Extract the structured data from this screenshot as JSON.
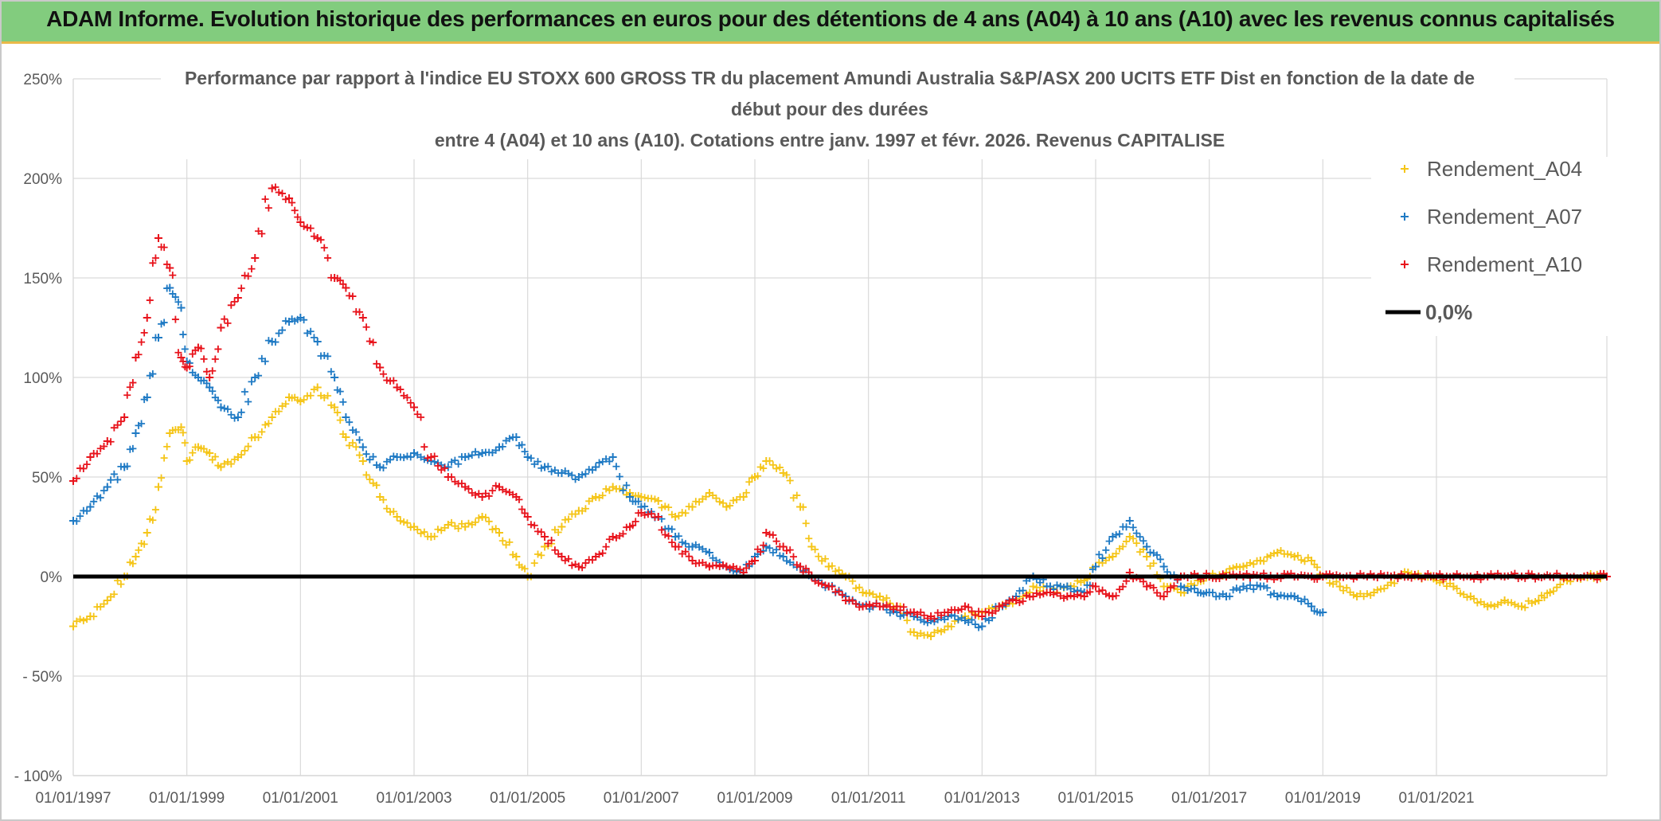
{
  "header": {
    "title": "ADAM Informe. Evolution historique des performances en euros pour des détentions de 4 ans (A04) à 10 ans (A10) avec les revenus connus capitalisés"
  },
  "colors": {
    "banner": "#82cc7e",
    "banner_border": "#e9b949",
    "A04": "#f5c518",
    "A07": "#1f7ac4",
    "A10": "#e8141c",
    "zero": "#000000",
    "grid": "#d9d9d9",
    "text": "#595959"
  },
  "chart_data": {
    "type": "scatter",
    "title_lines": [
      "Performance  par rapport à l'indice EU STOXX 600 GROSS TR  du placement Amundi Australia S&P/ASX 200 UCITS ETF Dist en fonction de la date de",
      "début pour des durées",
      "entre 4 (A04) et 10 ans (A10). Cotations entre janv. 1997 et févr. 2026. Revenus CAPITALISE"
    ],
    "xlabel": "",
    "ylabel": "",
    "x_range": [
      1997.0,
      2024.0
    ],
    "ylim": [
      -100,
      250
    ],
    "y_ticks": [
      250,
      200,
      150,
      100,
      50,
      0,
      -50,
      -100
    ],
    "y_tick_labels": [
      "250%",
      "200%",
      "150%",
      "100%",
      "50%",
      "0%",
      "- 50%",
      "- 100%"
    ],
    "x_ticks": [
      1997,
      1999,
      2001,
      2003,
      2005,
      2007,
      2009,
      2011,
      2013,
      2015,
      2017,
      2019,
      2021
    ],
    "x_tick_labels": [
      "01/01/1997",
      "01/01/1999",
      "01/01/2001",
      "01/01/2003",
      "01/01/2005",
      "01/01/2007",
      "01/01/2009",
      "01/01/2011",
      "01/01/2013",
      "01/01/2015",
      "01/01/2017",
      "01/01/2019",
      "01/01/2021"
    ],
    "grid": true,
    "legend_position": "top-right",
    "series": [
      {
        "name": "Rendement_A04",
        "marker": "+",
        "x": [
          1997.0,
          1997.3,
          1997.6,
          1997.9,
          1998.1,
          1998.3,
          1998.5,
          1998.7,
          1998.9,
          1999.0,
          1999.2,
          1999.4,
          1999.6,
          1999.9,
          2000.2,
          2000.5,
          2000.8,
          2001.0,
          2001.3,
          2001.6,
          2001.8,
          2002.1,
          2002.4,
          2002.7,
          2003.0,
          2003.3,
          2003.6,
          2003.9,
          2004.2,
          2004.5,
          2004.8,
          2005.0,
          2005.3,
          2005.6,
          2005.9,
          2006.2,
          2006.5,
          2006.8,
          2007.0,
          2007.3,
          2007.6,
          2007.9,
          2008.2,
          2008.5,
          2008.8,
          2009.0,
          2009.2,
          2009.5,
          2009.8,
          2010.0,
          2010.3,
          2010.6,
          2010.9,
          2011.2,
          2011.5,
          2011.8,
          2012.1,
          2012.4,
          2012.7,
          2013.0,
          2013.3,
          2013.6,
          2013.9,
          2014.2,
          2014.5,
          2014.8,
          2015.0,
          2015.3,
          2015.6,
          2015.9,
          2016.2,
          2016.5,
          2016.8,
          2017.0,
          2017.3,
          2017.6,
          2017.9,
          2018.2,
          2018.5,
          2018.8,
          2019.0,
          2019.3,
          2019.6,
          2019.9,
          2020.2,
          2020.5,
          2020.8,
          2021.0,
          2021.3,
          2021.6,
          2021.9,
          2022.2,
          2022.5,
          2022.8,
          2023.0,
          2023.3,
          2023.6,
          2024.0
        ],
        "y": [
          -25,
          -20,
          -12,
          0,
          10,
          22,
          45,
          72,
          75,
          58,
          65,
          62,
          55,
          60,
          70,
          80,
          90,
          88,
          95,
          85,
          70,
          58,
          40,
          30,
          25,
          20,
          26,
          25,
          30,
          22,
          10,
          0,
          15,
          25,
          33,
          40,
          45,
          42,
          40,
          38,
          30,
          35,
          42,
          35,
          40,
          50,
          58,
          52,
          35,
          15,
          5,
          0,
          -8,
          -10,
          -15,
          -28,
          -30,
          -25,
          -20,
          -18,
          -15,
          -12,
          -5,
          -8,
          -5,
          -2,
          5,
          10,
          20,
          10,
          -5,
          -8,
          -2,
          0,
          2,
          5,
          8,
          12,
          10,
          8,
          0,
          -5,
          -10,
          -8,
          -3,
          2,
          0,
          -2,
          -5,
          -10,
          -15,
          -12,
          -15,
          -12,
          -8,
          -2,
          0,
          0
        ]
      },
      {
        "name": "Rendement_A07",
        "marker": "+",
        "x": [
          1997.0,
          1997.3,
          1997.6,
          1997.9,
          1998.1,
          1998.3,
          1998.5,
          1998.7,
          1998.9,
          1999.0,
          1999.2,
          1999.4,
          1999.6,
          1999.9,
          2000.2,
          2000.5,
          2000.8,
          2001.0,
          2001.3,
          2001.6,
          2001.8,
          2002.1,
          2002.4,
          2002.7,
          2003.0,
          2003.3,
          2003.6,
          2003.9,
          2004.2,
          2004.5,
          2004.8,
          2005.0,
          2005.3,
          2005.6,
          2005.9,
          2006.2,
          2006.5,
          2006.8,
          2007.0,
          2007.3,
          2007.6,
          2007.9,
          2008.2,
          2008.5,
          2008.8,
          2009.0,
          2009.2,
          2009.5,
          2009.8,
          2010.0,
          2010.3,
          2010.6,
          2010.9,
          2011.2,
          2011.5,
          2011.8,
          2012.1,
          2012.4,
          2012.7,
          2013.0,
          2013.3,
          2013.6,
          2013.9,
          2014.2,
          2014.5,
          2014.8,
          2015.0,
          2015.3,
          2015.6,
          2015.9,
          2016.2,
          2016.5,
          2016.8,
          2017.0,
          2017.3,
          2017.6,
          2017.9,
          2018.2,
          2018.5,
          2018.8,
          2019.0
        ],
        "y": [
          28,
          35,
          45,
          55,
          72,
          90,
          120,
          145,
          135,
          108,
          100,
          95,
          85,
          80,
          100,
          118,
          128,
          130,
          118,
          100,
          80,
          65,
          55,
          60,
          62,
          58,
          55,
          60,
          62,
          65,
          70,
          60,
          55,
          52,
          50,
          55,
          60,
          40,
          35,
          30,
          20,
          15,
          12,
          5,
          2,
          10,
          15,
          10,
          5,
          0,
          -5,
          -10,
          -15,
          -15,
          -18,
          -20,
          -22,
          -20,
          -22,
          -25,
          -15,
          -10,
          0,
          -5,
          -5,
          -8,
          5,
          20,
          28,
          15,
          5,
          -5,
          -8,
          -8,
          -10,
          -5,
          -5,
          -10,
          -10,
          -15,
          -18
        ]
      },
      {
        "name": "Rendement_A10",
        "marker": "+",
        "x": [
          1997.0,
          1997.3,
          1997.6,
          1997.9,
          1998.1,
          1998.3,
          1998.5,
          1998.7,
          1998.9,
          1999.0,
          1999.2,
          1999.4,
          1999.6,
          1999.9,
          2000.2,
          2000.5,
          2000.8,
          2001.0,
          2001.3,
          2001.6,
          2001.8,
          2002.1,
          2002.4,
          2002.7,
          2003.0,
          2003.3,
          2003.6,
          2003.9,
          2004.2,
          2004.5,
          2004.8,
          2005.0,
          2005.3,
          2005.6,
          2005.9,
          2006.2,
          2006.5,
          2006.8,
          2007.0,
          2007.3,
          2007.6,
          2007.9,
          2008.2,
          2008.5,
          2008.8,
          2009.0,
          2009.2,
          2009.5,
          2009.8,
          2010.0,
          2010.3,
          2010.6,
          2010.9,
          2011.2,
          2011.5,
          2011.8,
          2012.1,
          2012.4,
          2012.7,
          2013.0,
          2013.3,
          2013.6,
          2013.9,
          2014.2,
          2014.5,
          2014.8,
          2015.0,
          2015.3,
          2015.6,
          2015.9,
          2016.2,
          2016.5,
          2016.8,
          2017.0,
          2017.3,
          2017.6,
          2017.9,
          2018.2,
          2018.5,
          2018.8,
          2019.0,
          2019.3,
          2019.6,
          2019.9,
          2020.2,
          2020.5,
          2020.8,
          2021.0,
          2021.3,
          2021.6,
          2021.9,
          2022.2,
          2022.5,
          2022.8,
          2023.0,
          2023.3,
          2023.6,
          2024.0
        ],
        "y": [
          48,
          60,
          68,
          80,
          110,
          130,
          170,
          155,
          110,
          105,
          115,
          100,
          125,
          140,
          160,
          195,
          190,
          178,
          170,
          150,
          145,
          130,
          105,
          95,
          85,
          60,
          50,
          45,
          40,
          45,
          40,
          30,
          20,
          10,
          5,
          10,
          20,
          25,
          32,
          30,
          15,
          8,
          5,
          5,
          2,
          8,
          22,
          15,
          5,
          0,
          -5,
          -12,
          -15,
          -15,
          -15,
          -18,
          -20,
          -18,
          -15,
          -20,
          -15,
          -12,
          -10,
          -8,
          -10,
          -10,
          -5,
          -10,
          2,
          -5,
          -10,
          0,
          0,
          0,
          0,
          0,
          0,
          0,
          0,
          0,
          0,
          0,
          0,
          0,
          0,
          0,
          0,
          0,
          0,
          0,
          0,
          0,
          0,
          0,
          0,
          0,
          0,
          0
        ]
      },
      {
        "name": "0,0%",
        "type": "line",
        "x": [
          1997.0,
          2024.0
        ],
        "y": [
          0,
          0
        ]
      }
    ]
  }
}
